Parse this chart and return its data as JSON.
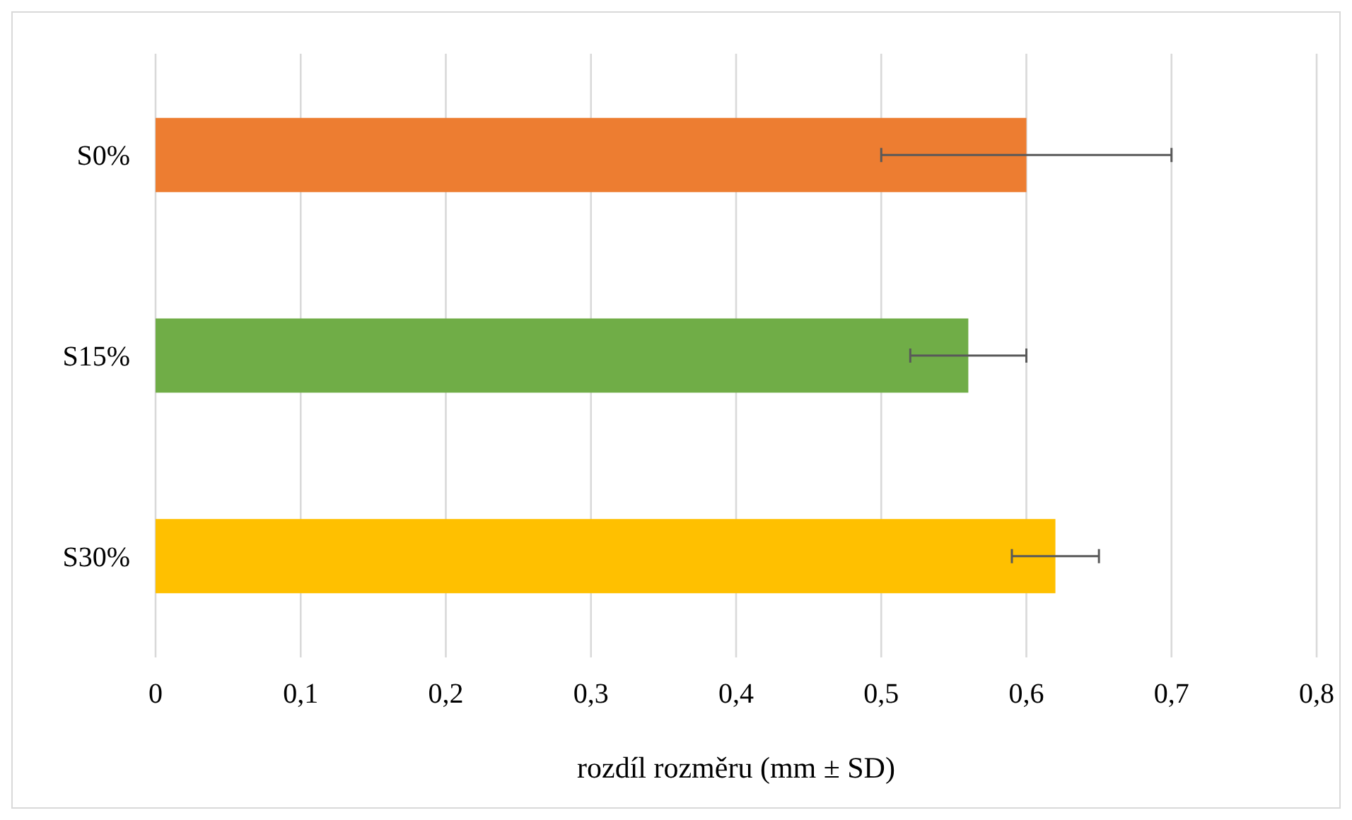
{
  "chart_data": {
    "type": "bar",
    "orientation": "horizontal",
    "xlabel": "rozdíl rozměru (mm ± SD)",
    "categories": [
      "S0%",
      "S15%",
      "S30%"
    ],
    "values": [
      0.6,
      0.56,
      0.62
    ],
    "colors": [
      "#ed7d31",
      "#70ad47",
      "#ffc000"
    ],
    "errors": [
      0.1,
      0.04,
      0.03
    ],
    "xlim": [
      0,
      0.8
    ],
    "xticks": [
      {
        "value": 0,
        "label": "0"
      },
      {
        "value": 0.1,
        "label": "0,1"
      },
      {
        "value": 0.2,
        "label": "0,2"
      },
      {
        "value": 0.3,
        "label": "0,3"
      },
      {
        "value": 0.4,
        "label": "0,4"
      },
      {
        "value": 0.5,
        "label": "0,5"
      },
      {
        "value": 0.6,
        "label": "0,6"
      },
      {
        "value": 0.7,
        "label": "0,7"
      },
      {
        "value": 0.8,
        "label": "0,8"
      }
    ],
    "grid": true
  }
}
